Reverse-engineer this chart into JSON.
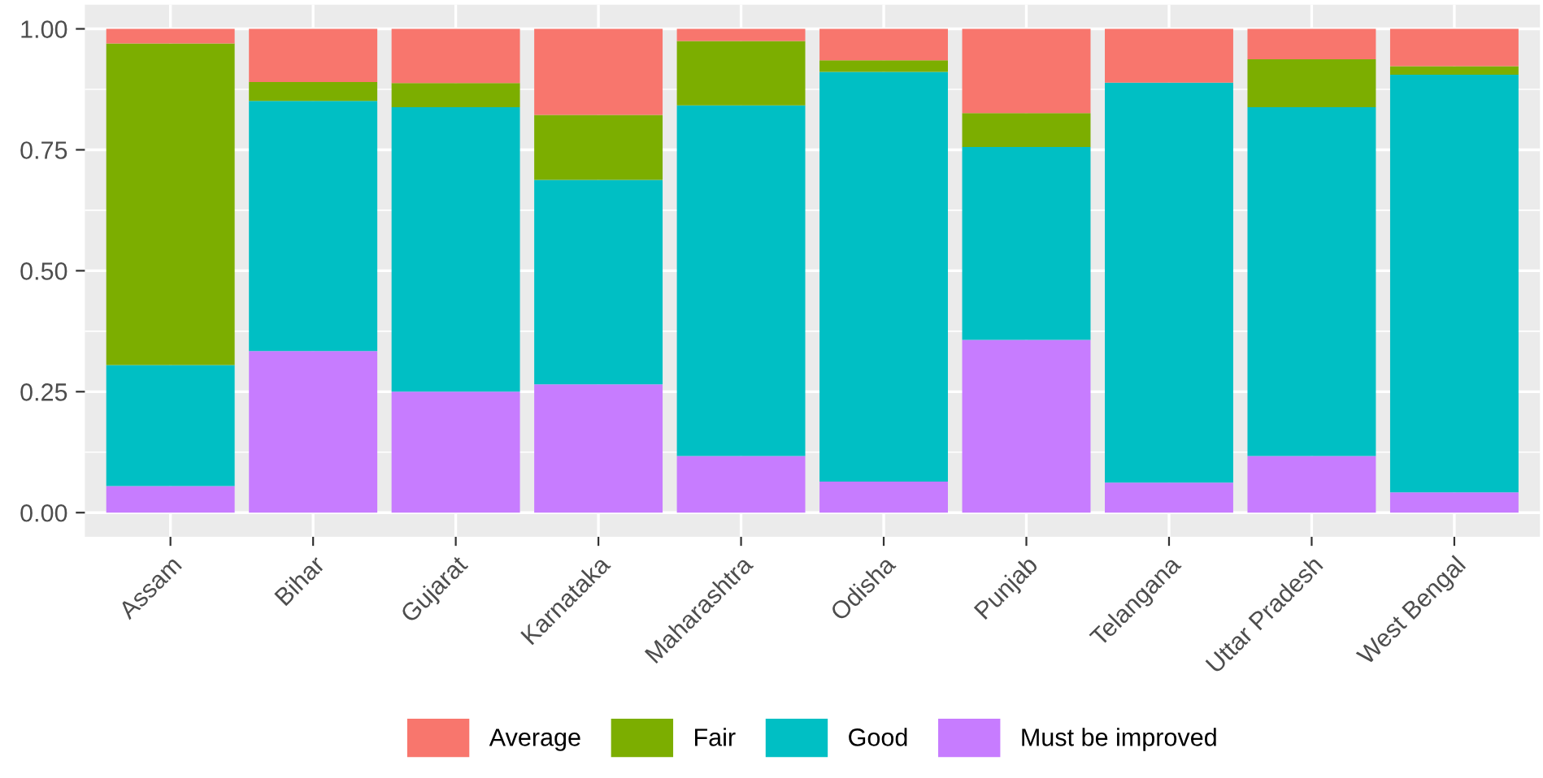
{
  "chart_data": {
    "type": "bar",
    "stacked": true,
    "categories": [
      "Assam",
      "Bihar",
      "Gujarat",
      "Karnataka",
      "Maharashtra",
      "Odisha",
      "Punjab",
      "Telangana",
      "Uttar Pradesh",
      "West Bengal"
    ],
    "series": [
      {
        "name": "Must be improved",
        "color": "#c77cff",
        "values": [
          0.055,
          0.334,
          0.25,
          0.265,
          0.117,
          0.064,
          0.357,
          0.062,
          0.117,
          0.042
        ]
      },
      {
        "name": "Good",
        "color": "#00bfc4",
        "values": [
          0.25,
          0.517,
          0.588,
          0.423,
          0.725,
          0.847,
          0.399,
          0.827,
          0.721,
          0.863
        ]
      },
      {
        "name": "Fair",
        "color": "#7cae00",
        "values": [
          0.665,
          0.039,
          0.05,
          0.134,
          0.133,
          0.024,
          0.07,
          0,
          0.099,
          0.018
        ]
      },
      {
        "name": "Average",
        "color": "#f8766d",
        "values": [
          0.03,
          0.11,
          0.112,
          0.178,
          0.025,
          0.065,
          0.174,
          0.111,
          0.063,
          0.077
        ]
      }
    ],
    "ylim": [
      -0.05,
      1.05
    ],
    "yticks": [
      {
        "value": 0,
        "label": "0.00"
      },
      {
        "value": 0.25,
        "label": "0.25"
      },
      {
        "value": 0.5,
        "label": "0.50"
      },
      {
        "value": 0.75,
        "label": "0.75"
      },
      {
        "value": 1,
        "label": "1.00"
      }
    ],
    "grid": true,
    "legend": "bottom"
  }
}
